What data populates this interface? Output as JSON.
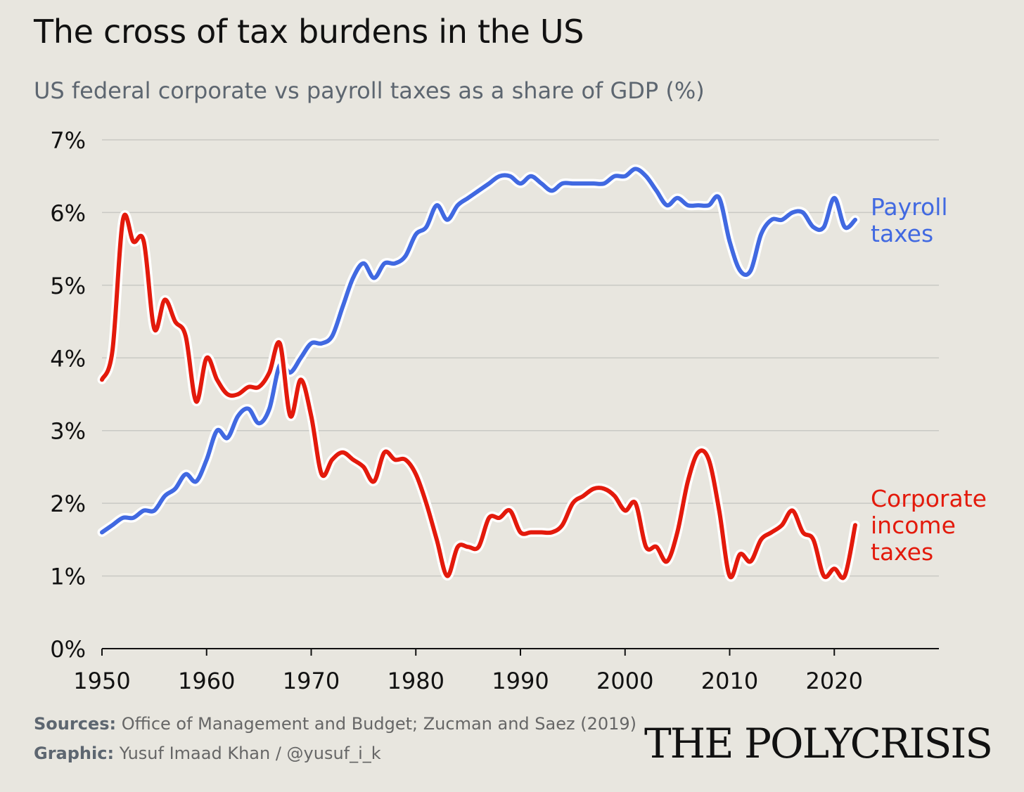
{
  "title": "The cross of tax burdens in the US",
  "subtitle": "US federal corporate vs payroll taxes as a share of GDP (%)",
  "footer": {
    "sources_label": "Sources:",
    "sources_text": "Office of Management and Budget; Zucman and Saez (2019)",
    "graphic_label": "Graphic:",
    "graphic_text": "Yusuf Imaad Khan / @yusuf_i_k"
  },
  "brand": "THE POLYCRISIS",
  "colors": {
    "payroll": "#4169e1",
    "corporate": "#e31a0c",
    "grid": "#c9c9c4",
    "background": "#e8e6df"
  },
  "chart_data": {
    "type": "line",
    "ylim": [
      0,
      7
    ],
    "xlim": [
      1950,
      2030
    ],
    "y_ticks": [
      "0%",
      "1%",
      "2%",
      "3%",
      "4%",
      "5%",
      "6%",
      "7%"
    ],
    "x_ticks": [
      "1950",
      "1960",
      "1970",
      "1980",
      "1990",
      "2000",
      "2010",
      "2020"
    ],
    "grid": "horizontal",
    "series": [
      {
        "name": "Payroll taxes",
        "label_lines": [
          "Payroll",
          "taxes"
        ],
        "color": "#4169e1",
        "x": [
          1950,
          1951,
          1952,
          1953,
          1954,
          1955,
          1956,
          1957,
          1958,
          1959,
          1960,
          1961,
          1962,
          1963,
          1964,
          1965,
          1966,
          1967,
          1968,
          1969,
          1970,
          1971,
          1972,
          1973,
          1974,
          1975,
          1976,
          1977,
          1978,
          1979,
          1980,
          1981,
          1982,
          1983,
          1984,
          1985,
          1986,
          1987,
          1988,
          1989,
          1990,
          1991,
          1992,
          1993,
          1994,
          1995,
          1996,
          1997,
          1998,
          1999,
          2000,
          2001,
          2002,
          2003,
          2004,
          2005,
          2006,
          2007,
          2008,
          2009,
          2010,
          2011,
          2012,
          2013,
          2014,
          2015,
          2016,
          2017,
          2018,
          2019,
          2020,
          2021,
          2022
        ],
        "y": [
          1.6,
          1.7,
          1.8,
          1.8,
          1.9,
          1.9,
          2.1,
          2.2,
          2.4,
          2.3,
          2.6,
          3.0,
          2.9,
          3.2,
          3.3,
          3.1,
          3.3,
          3.9,
          3.8,
          4.0,
          4.2,
          4.2,
          4.3,
          4.7,
          5.1,
          5.3,
          5.1,
          5.3,
          5.3,
          5.4,
          5.7,
          5.8,
          6.1,
          5.9,
          6.1,
          6.2,
          6.3,
          6.4,
          6.5,
          6.5,
          6.4,
          6.5,
          6.4,
          6.3,
          6.4,
          6.4,
          6.4,
          6.4,
          6.4,
          6.5,
          6.5,
          6.6,
          6.5,
          6.3,
          6.1,
          6.2,
          6.1,
          6.1,
          6.1,
          6.2,
          5.6,
          5.2,
          5.2,
          5.7,
          5.9,
          5.9,
          6.0,
          6.0,
          5.8,
          5.8,
          6.2,
          5.8,
          5.9
        ]
      },
      {
        "name": "Corporate income taxes",
        "label_lines": [
          "Corporate",
          "income",
          "taxes"
        ],
        "color": "#e31a0c",
        "x": [
          1950,
          1951,
          1952,
          1953,
          1954,
          1955,
          1956,
          1957,
          1958,
          1959,
          1960,
          1961,
          1962,
          1963,
          1964,
          1965,
          1966,
          1967,
          1968,
          1969,
          1970,
          1971,
          1972,
          1973,
          1974,
          1975,
          1976,
          1977,
          1978,
          1979,
          1980,
          1981,
          1982,
          1983,
          1984,
          1985,
          1986,
          1987,
          1988,
          1989,
          1990,
          1991,
          1992,
          1993,
          1994,
          1995,
          1996,
          1997,
          1998,
          1999,
          2000,
          2001,
          2002,
          2003,
          2004,
          2005,
          2006,
          2007,
          2008,
          2009,
          2010,
          2011,
          2012,
          2013,
          2014,
          2015,
          2016,
          2017,
          2018,
          2019,
          2020,
          2021,
          2022
        ],
        "y": [
          3.7,
          4.1,
          5.9,
          5.6,
          5.6,
          4.4,
          4.8,
          4.5,
          4.3,
          3.4,
          4.0,
          3.7,
          3.5,
          3.5,
          3.6,
          3.6,
          3.8,
          4.2,
          3.2,
          3.7,
          3.2,
          2.4,
          2.6,
          2.7,
          2.6,
          2.5,
          2.3,
          2.7,
          2.6,
          2.6,
          2.4,
          2.0,
          1.5,
          1.0,
          1.4,
          1.4,
          1.4,
          1.8,
          1.8,
          1.9,
          1.6,
          1.6,
          1.6,
          1.6,
          1.7,
          2.0,
          2.1,
          2.2,
          2.2,
          2.1,
          1.9,
          2.0,
          1.4,
          1.4,
          1.2,
          1.6,
          2.3,
          2.7,
          2.6,
          1.9,
          1.0,
          1.3,
          1.2,
          1.5,
          1.6,
          1.7,
          1.9,
          1.6,
          1.5,
          1.0,
          1.1,
          1.0,
          1.7
        ]
      }
    ]
  }
}
